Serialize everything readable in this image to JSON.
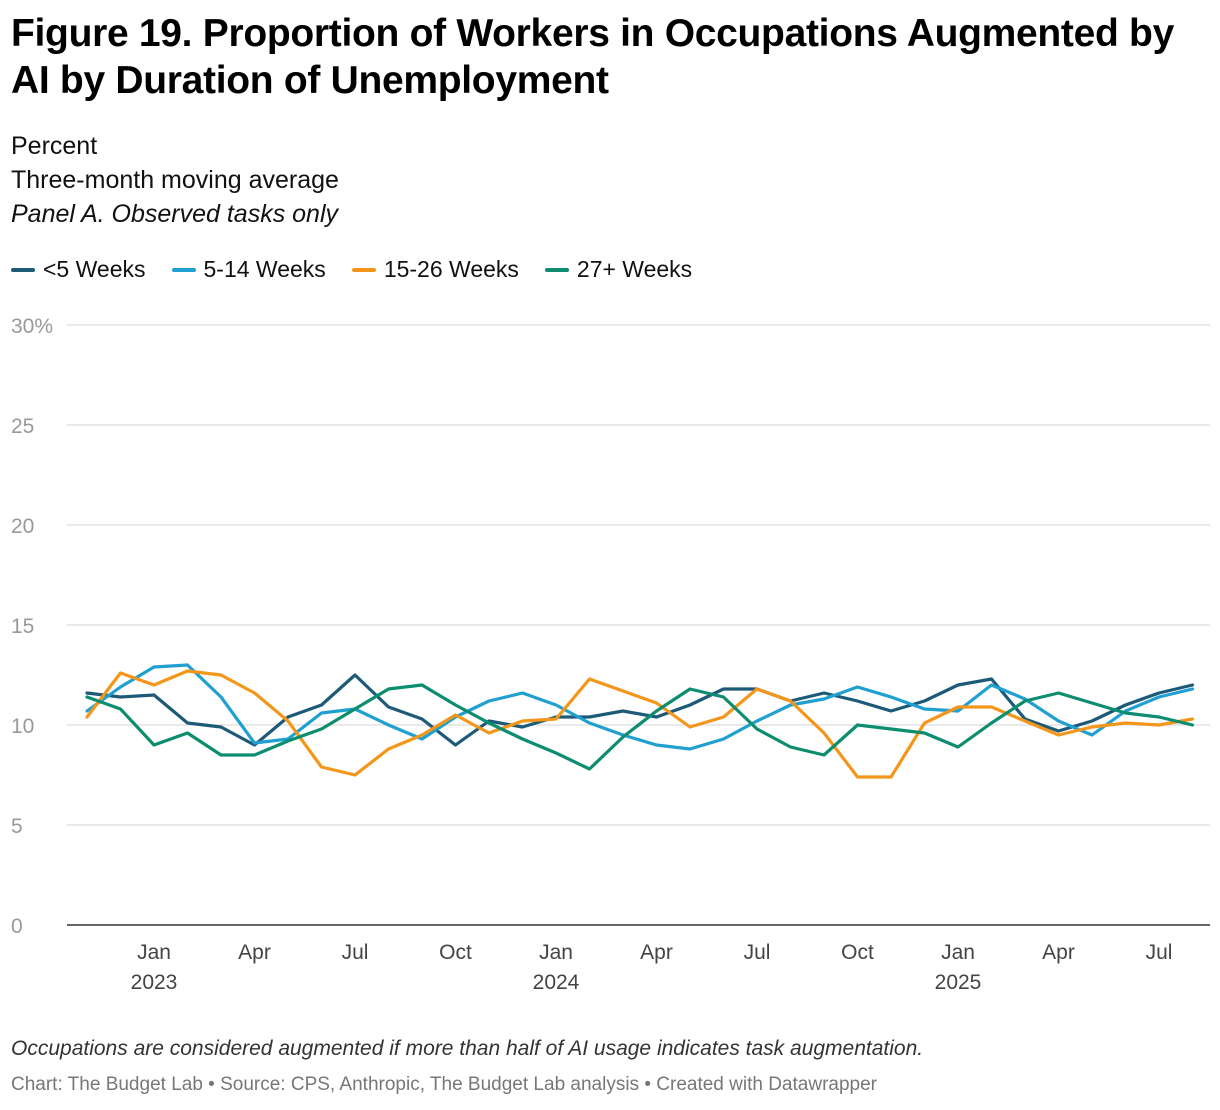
{
  "header": {
    "title": "Figure 19. Proportion of Workers in Occupations Augmented by AI by Duration of Unemployment",
    "subtitle_units": "Percent",
    "subtitle_method": "Three-month moving average",
    "subtitle_panel": "Panel A. Observed tasks only"
  },
  "footer": {
    "note": "Occupations are considered augmented if more than half of AI usage indicates task augmentation.",
    "credit": "Chart: The Budget Lab • Source: CPS, Anthropic, The Budget Lab analysis • Created with Datawrapper"
  },
  "chart_data": {
    "type": "line",
    "title": "Figure 19. Proportion of Workers in Occupations Augmented by AI by Duration of Unemployment",
    "ylabel": "Percent",
    "xlabel": "",
    "ylim": [
      0,
      30
    ],
    "y_ticks": [
      0,
      5,
      10,
      15,
      20,
      25,
      30
    ],
    "y_tick_labels": [
      "0",
      "5",
      "10",
      "15",
      "20",
      "25",
      "30%"
    ],
    "x_start": "2022-11",
    "x_end": "2025-08",
    "x": [
      "2022-11",
      "2022-12",
      "2023-01",
      "2023-02",
      "2023-03",
      "2023-04",
      "2023-05",
      "2023-06",
      "2023-07",
      "2023-08",
      "2023-09",
      "2023-10",
      "2023-11",
      "2023-12",
      "2024-01",
      "2024-02",
      "2024-03",
      "2024-04",
      "2024-05",
      "2024-06",
      "2024-07",
      "2024-08",
      "2024-09",
      "2024-10",
      "2024-11",
      "2024-12",
      "2025-01",
      "2025-02",
      "2025-03",
      "2025-04",
      "2025-05",
      "2025-06",
      "2025-07",
      "2025-08"
    ],
    "x_ticks": [
      {
        "month_index": 2,
        "label": "Jan",
        "year": "2023"
      },
      {
        "month_index": 5,
        "label": "Apr",
        "year": ""
      },
      {
        "month_index": 8,
        "label": "Jul",
        "year": ""
      },
      {
        "month_index": 11,
        "label": "Oct",
        "year": ""
      },
      {
        "month_index": 14,
        "label": "Jan",
        "year": "2024"
      },
      {
        "month_index": 17,
        "label": "Apr",
        "year": ""
      },
      {
        "month_index": 20,
        "label": "Jul",
        "year": ""
      },
      {
        "month_index": 23,
        "label": "Oct",
        "year": ""
      },
      {
        "month_index": 26,
        "label": "Jan",
        "year": "2025"
      },
      {
        "month_index": 29,
        "label": "Apr",
        "year": ""
      },
      {
        "month_index": 32,
        "label": "Jul",
        "year": ""
      }
    ],
    "legend_position": "top-left",
    "grid": true,
    "series": [
      {
        "name": "<5 Weeks",
        "color": "#1c5a78",
        "values": [
          11.6,
          11.4,
          11.5,
          10.1,
          9.9,
          9.0,
          10.4,
          11.0,
          12.5,
          10.9,
          10.3,
          9.0,
          10.2,
          9.9,
          10.4,
          10.4,
          10.7,
          10.4,
          11.0,
          11.8,
          11.8,
          11.2,
          11.6,
          11.2,
          10.7,
          11.2,
          12.0,
          12.3,
          10.3,
          9.7,
          10.2,
          11.0,
          11.6,
          12.0
        ]
      },
      {
        "name": "5-14 Weeks",
        "color": "#20a0d0",
        "values": [
          10.7,
          11.9,
          12.9,
          13.0,
          11.4,
          9.1,
          9.3,
          10.6,
          10.8,
          10.0,
          9.3,
          10.4,
          11.2,
          11.6,
          11.0,
          10.1,
          9.5,
          9.0,
          8.8,
          9.3,
          10.2,
          11.0,
          11.3,
          11.9,
          11.4,
          10.8,
          10.7,
          12.0,
          11.3,
          10.2,
          9.5,
          10.7,
          11.4,
          11.8
        ]
      },
      {
        "name": "15-26 Weeks",
        "color": "#f39619",
        "values": [
          10.4,
          12.6,
          12.0,
          12.7,
          12.5,
          11.6,
          10.2,
          7.9,
          7.5,
          8.8,
          9.5,
          10.5,
          9.6,
          10.2,
          10.3,
          12.3,
          11.7,
          11.1,
          9.9,
          10.4,
          11.8,
          11.2,
          9.6,
          7.4,
          7.4,
          10.1,
          10.9,
          10.9,
          10.2,
          9.5,
          9.9,
          10.1,
          10.0,
          10.3
        ]
      },
      {
        "name": "27+ Weeks",
        "color": "#0c8d6f",
        "values": [
          11.4,
          10.8,
          9.0,
          9.6,
          8.5,
          8.5,
          9.2,
          9.8,
          10.8,
          11.8,
          12.0,
          11.0,
          10.1,
          9.3,
          8.6,
          7.8,
          9.4,
          10.7,
          11.8,
          11.4,
          9.8,
          8.9,
          8.5,
          10.0,
          9.8,
          9.6,
          8.9,
          10.1,
          11.2,
          11.6,
          11.1,
          10.6,
          10.4,
          10.0
        ]
      }
    ]
  }
}
